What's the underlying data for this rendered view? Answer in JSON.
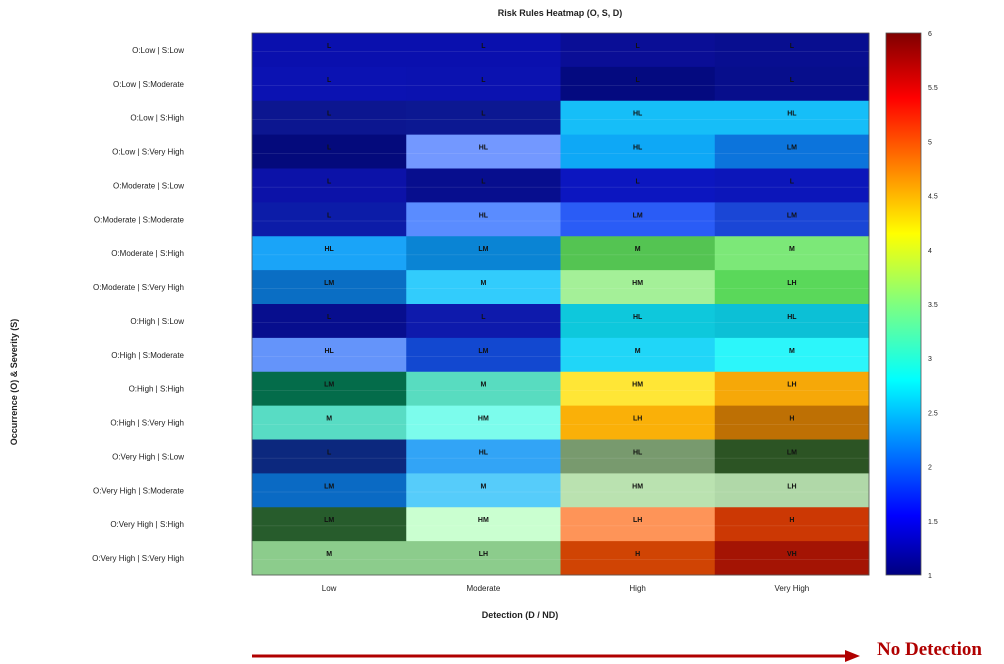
{
  "chart_data": {
    "type": "heatmap",
    "title": "Risk Rules Heatmap (O, S, D)",
    "xlabel": "Detection (D / ND)",
    "ylabel": "Occurrence (O) & Severity (S)",
    "x_categories": [
      "Low",
      "Moderate",
      "High",
      "Very High"
    ],
    "y_categories": [
      "O:Low | S:Low",
      "O:Low | S:Moderate",
      "O:Low | S:High",
      "O:Low | S:Very High",
      "O:Moderate | S:Low",
      "O:Moderate | S:Moderate",
      "O:Moderate | S:High",
      "O:Moderate | S:Very High",
      "O:High | S:Low",
      "O:High | S:Moderate",
      "O:High | S:High",
      "O:High | S:Very High",
      "O:Very High | S:Low",
      "O:Very High | S:Moderate",
      "O:Very High | S:High",
      "O:Very High | S:Very High"
    ],
    "values": [
      [
        1.1,
        1.15,
        1.05,
        1.08
      ],
      [
        1.12,
        1.1,
        1.0,
        1.05
      ],
      [
        1.2,
        1.25,
        2.75,
        2.75
      ],
      [
        1.08,
        1.9,
        2.65,
        2.3
      ],
      [
        1.15,
        1.1,
        1.18,
        1.2
      ],
      [
        1.2,
        1.95,
        1.65,
        1.6
      ],
      [
        2.6,
        2.3,
        3.3,
        3.5
      ],
      [
        2.2,
        2.8,
        3.65,
        3.4
      ],
      [
        1.1,
        1.2,
        2.85,
        2.9
      ],
      [
        1.9,
        1.55,
        2.9,
        3.0
      ],
      [
        3.0,
        3.1,
        4.2,
        4.5
      ],
      [
        3.1,
        3.25,
        4.5,
        4.85
      ],
      [
        1.3,
        2.5,
        3.2,
        3.1
      ],
      [
        2.2,
        2.7,
        3.55,
        3.55
      ],
      [
        3.0,
        3.65,
        4.75,
        5.15
      ],
      [
        3.4,
        3.4,
        5.3,
        5.85
      ]
    ],
    "cell_labels": [
      [
        "L",
        "L",
        "L",
        "L"
      ],
      [
        "L",
        "L",
        "L",
        "L"
      ],
      [
        "L",
        "L",
        "HL",
        "HL"
      ],
      [
        "L",
        "HL",
        "HL",
        "LM"
      ],
      [
        "L",
        "L",
        "L",
        "L"
      ],
      [
        "L",
        "HL",
        "LM",
        "LM"
      ],
      [
        "HL",
        "LM",
        "M",
        "M"
      ],
      [
        "LM",
        "M",
        "HM",
        "LH"
      ],
      [
        "L",
        "L",
        "HL",
        "HL"
      ],
      [
        "HL",
        "LM",
        "M",
        "M"
      ],
      [
        "LM",
        "M",
        "HM",
        "LH"
      ],
      [
        "M",
        "HM",
        "LH",
        "H"
      ],
      [
        "L",
        "HL",
        "HL",
        "LM"
      ],
      [
        "LM",
        "M",
        "HM",
        "LH"
      ],
      [
        "LM",
        "HM",
        "LH",
        "H"
      ],
      [
        "M",
        "LH",
        "H",
        "VH"
      ]
    ],
    "cell_colors": [
      [
        "#0a10ae",
        "#0a10ae",
        "#0a0e96",
        "#080e90"
      ],
      [
        "#0b12b2",
        "#0b12b0",
        "#040a80",
        "#070e8c"
      ],
      [
        "#0c1690",
        "#0c1892",
        "#16bef8",
        "#16bef8"
      ],
      [
        "#040a7c",
        "#7398ff",
        "#0ea8f6",
        "#0c74dc"
      ],
      [
        "#0c12a8",
        "#070e8e",
        "#0c16c0",
        "#0c16ba"
      ],
      [
        "#0c1ca8",
        "#5a8cff",
        "#2a5cf6",
        "#1a46d6"
      ],
      [
        "#1aa4f8",
        "#0a84d4",
        "#54c452",
        "#7ce878"
      ],
      [
        "#0a6ec4",
        "#32ccfc",
        "#a4f098",
        "#5ad85a"
      ],
      [
        "#070e8e",
        "#0e1aac",
        "#0ec8dc",
        "#0cc0d6"
      ],
      [
        "#6494fa",
        "#1248d0",
        "#20d6f8",
        "#2cf6fa"
      ],
      [
        "#046c4a",
        "#58dcc0",
        "#ffe636",
        "#f6a808"
      ],
      [
        "#58dcc4",
        "#7cfcec",
        "#fab008",
        "#be7004"
      ],
      [
        "#0c287e",
        "#32a4f6",
        "#789a6e",
        "#2c5424"
      ],
      [
        "#0a6ac4",
        "#56ccfa",
        "#bae2b0",
        "#b0d8a8"
      ],
      [
        "#275c2c",
        "#caffd0",
        "#fe9458",
        "#cc3804"
      ],
      [
        "#8ccc8c",
        "#8ccc8c",
        "#d04404",
        "#a41404"
      ]
    ],
    "colorbar": {
      "min": 1,
      "max": 6,
      "ticks": [
        "1",
        "1.5",
        "2",
        "2.5",
        "3",
        "3.5",
        "4",
        "4.5",
        "5",
        "5.5",
        "6"
      ]
    },
    "grid": true,
    "legend": "colorbar-right"
  },
  "annotation": {
    "arrow_label": "No Detection",
    "arrow_color": "#b00000"
  }
}
